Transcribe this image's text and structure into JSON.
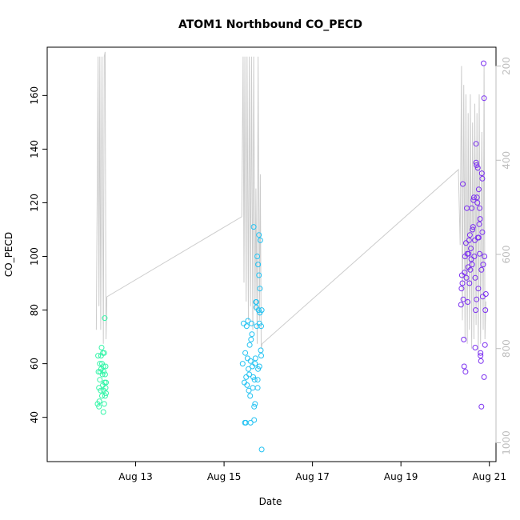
{
  "chart_data": {
    "type": "scatter",
    "title": "ATOM1 Northbound CO_PECD",
    "xlabel": "Date",
    "ylabel": "CO_PECD",
    "x_unit": "days (0 = Aug 12 00:00)",
    "xlim": [
      -1.0,
      9.15
    ],
    "ylim": [
      23.5,
      178
    ],
    "x_ticks": [
      {
        "v": 1,
        "label": "Aug 13"
      },
      {
        "v": 3,
        "label": "Aug 15"
      },
      {
        "v": 5,
        "label": "Aug 17"
      },
      {
        "v": 7,
        "label": "Aug 19"
      },
      {
        "v": 9,
        "label": "Aug 21"
      }
    ],
    "y_ticks": [
      40,
      60,
      80,
      100,
      120,
      140,
      160
    ],
    "right_axis": {
      "reversed": true,
      "lim": [
        160,
        1040
      ],
      "ticks": [
        200,
        400,
        600,
        800,
        1000
      ],
      "color": "#bdbdbd"
    },
    "colors": {
      "group1": "#34f5a8",
      "group2": "#22c2f2",
      "group3": "#7b2ff0",
      "line": "#cccccc",
      "frame": "#000000"
    },
    "series": [
      {
        "name": "group1",
        "color": "#34f5a8",
        "points": [
          [
            0.14,
            45
          ],
          [
            0.15,
            63
          ],
          [
            0.16,
            57
          ],
          [
            0.17,
            51
          ],
          [
            0.17,
            44
          ],
          [
            0.18,
            46
          ],
          [
            0.19,
            60
          ],
          [
            0.19,
            54
          ],
          [
            0.2,
            57
          ],
          [
            0.21,
            50
          ],
          [
            0.22,
            63
          ],
          [
            0.22,
            58
          ],
          [
            0.23,
            66
          ],
          [
            0.24,
            60
          ],
          [
            0.24,
            48
          ],
          [
            0.25,
            56
          ],
          [
            0.26,
            64
          ],
          [
            0.26,
            52
          ],
          [
            0.27,
            42
          ],
          [
            0.27,
            59
          ],
          [
            0.28,
            57
          ],
          [
            0.28,
            50
          ],
          [
            0.29,
            64
          ],
          [
            0.29,
            45
          ],
          [
            0.3,
            77
          ],
          [
            0.3,
            53
          ],
          [
            0.31,
            48
          ],
          [
            0.31,
            56
          ],
          [
            0.32,
            51
          ],
          [
            0.32,
            59
          ],
          [
            0.33,
            49
          ],
          [
            0.33,
            53
          ]
        ]
      },
      {
        "name": "group2",
        "color": "#22c2f2",
        "points": [
          [
            3.42,
            60
          ],
          [
            3.44,
            75
          ],
          [
            3.46,
            53
          ],
          [
            3.47,
            38
          ],
          [
            3.48,
            64
          ],
          [
            3.49,
            38
          ],
          [
            3.5,
            55
          ],
          [
            3.51,
            74
          ],
          [
            3.52,
            52
          ],
          [
            3.53,
            62
          ],
          [
            3.54,
            76
          ],
          [
            3.55,
            58
          ],
          [
            3.56,
            50
          ],
          [
            3.57,
            56
          ],
          [
            3.58,
            67
          ],
          [
            3.59,
            48
          ],
          [
            3.6,
            38
          ],
          [
            3.6,
            61
          ],
          [
            3.61,
            69
          ],
          [
            3.62,
            75
          ],
          [
            3.63,
            71
          ],
          [
            3.64,
            59
          ],
          [
            3.65,
            51
          ],
          [
            3.66,
            55
          ],
          [
            3.67,
            111
          ],
          [
            3.68,
            39
          ],
          [
            3.68,
            44
          ],
          [
            3.69,
            54
          ],
          [
            3.7,
            60
          ],
          [
            3.7,
            45
          ],
          [
            3.71,
            62
          ],
          [
            3.72,
            83
          ],
          [
            3.73,
            83
          ],
          [
            3.73,
            81
          ],
          [
            3.74,
            74
          ],
          [
            3.75,
            100
          ],
          [
            3.76,
            54
          ],
          [
            3.76,
            51
          ],
          [
            3.77,
            58
          ],
          [
            3.77,
            97
          ],
          [
            3.78,
            80
          ],
          [
            3.79,
            108
          ],
          [
            3.79,
            93
          ],
          [
            3.8,
            75
          ],
          [
            3.8,
            59
          ],
          [
            3.81,
            88
          ],
          [
            3.81,
            79
          ],
          [
            3.82,
            106
          ],
          [
            3.83,
            65
          ],
          [
            3.84,
            63
          ],
          [
            3.84,
            74
          ],
          [
            3.85,
            80
          ],
          [
            3.85,
            28
          ]
        ]
      },
      {
        "name": "group3",
        "color": "#7b2ff0",
        "points": [
          [
            8.36,
            82
          ],
          [
            8.37,
            88
          ],
          [
            8.38,
            93
          ],
          [
            8.39,
            90
          ],
          [
            8.4,
            127
          ],
          [
            8.41,
            84
          ],
          [
            8.42,
            69
          ],
          [
            8.43,
            59
          ],
          [
            8.44,
            94
          ],
          [
            8.45,
            100
          ],
          [
            8.46,
            57
          ],
          [
            8.47,
            105
          ],
          [
            8.48,
            92
          ],
          [
            8.49,
            118
          ],
          [
            8.5,
            101
          ],
          [
            8.51,
            83
          ],
          [
            8.52,
            96
          ],
          [
            8.53,
            101
          ],
          [
            8.54,
            106
          ],
          [
            8.55,
            90
          ],
          [
            8.56,
            108
          ],
          [
            8.57,
            95
          ],
          [
            8.58,
            103
          ],
          [
            8.59,
            99
          ],
          [
            8.6,
            118
          ],
          [
            8.61,
            97
          ],
          [
            8.62,
            110
          ],
          [
            8.63,
            111
          ],
          [
            8.64,
            121
          ],
          [
            8.65,
            122
          ],
          [
            8.66,
            100
          ],
          [
            8.67,
            106
          ],
          [
            8.68,
            92
          ],
          [
            8.68,
            66
          ],
          [
            8.69,
            80
          ],
          [
            8.7,
            142
          ],
          [
            8.7,
            135
          ],
          [
            8.71,
            134
          ],
          [
            8.71,
            84
          ],
          [
            8.72,
            122
          ],
          [
            8.73,
            120
          ],
          [
            8.74,
            133
          ],
          [
            8.74,
            107
          ],
          [
            8.75,
            88
          ],
          [
            8.76,
            107
          ],
          [
            8.76,
            125
          ],
          [
            8.77,
            112
          ],
          [
            8.78,
            101
          ],
          [
            8.78,
            118
          ],
          [
            8.79,
            114
          ],
          [
            8.8,
            63
          ],
          [
            8.8,
            64
          ],
          [
            8.81,
            61
          ],
          [
            8.82,
            95
          ],
          [
            8.82,
            44
          ],
          [
            8.83,
            131
          ],
          [
            8.84,
            109
          ],
          [
            8.84,
            129
          ],
          [
            8.85,
            85
          ],
          [
            8.86,
            97
          ],
          [
            8.87,
            172
          ],
          [
            8.88,
            159
          ],
          [
            8.88,
            55
          ],
          [
            8.89,
            100
          ],
          [
            8.9,
            67
          ],
          [
            8.91,
            80
          ],
          [
            8.92,
            86
          ]
        ]
      }
    ],
    "line_series": {
      "name": "secondary (right axis)",
      "color": "#cccccc",
      "points": [
        [
          0.11,
          760
        ],
        [
          0.15,
          180
        ],
        [
          0.17,
          710
        ],
        [
          0.19,
          180
        ],
        [
          0.21,
          760
        ],
        [
          0.24,
          180
        ],
        [
          0.27,
          790
        ],
        [
          0.29,
          180
        ],
        [
          0.31,
          170
        ],
        [
          0.33,
          780
        ],
        [
          0.35,
          690
        ],
        [
          3.4,
          520
        ],
        [
          3.43,
          180
        ],
        [
          3.45,
          660
        ],
        [
          3.47,
          180
        ],
        [
          3.5,
          700
        ],
        [
          3.52,
          180
        ],
        [
          3.55,
          740
        ],
        [
          3.57,
          180
        ],
        [
          3.6,
          710
        ],
        [
          3.62,
          180
        ],
        [
          3.65,
          760
        ],
        [
          3.67,
          180
        ],
        [
          3.7,
          720
        ],
        [
          3.72,
          460
        ],
        [
          3.75,
          790
        ],
        [
          3.77,
          180
        ],
        [
          3.8,
          740
        ],
        [
          3.82,
          430
        ],
        [
          3.84,
          800
        ],
        [
          3.86,
          790
        ],
        [
          8.3,
          420
        ],
        [
          8.34,
          580
        ],
        [
          8.37,
          200
        ],
        [
          8.39,
          740
        ],
        [
          8.42,
          240
        ],
        [
          8.45,
          780
        ],
        [
          8.47,
          260
        ],
        [
          8.5,
          790
        ],
        [
          8.52,
          300
        ],
        [
          8.55,
          760
        ],
        [
          8.57,
          260
        ],
        [
          8.6,
          800
        ],
        [
          8.62,
          320
        ],
        [
          8.65,
          780
        ],
        [
          8.67,
          280
        ],
        [
          8.7,
          750
        ],
        [
          8.72,
          300
        ],
        [
          8.75,
          810
        ],
        [
          8.77,
          260
        ],
        [
          8.8,
          790
        ],
        [
          8.83,
          340
        ],
        [
          8.86,
          760
        ],
        [
          8.88,
          200
        ],
        [
          8.9,
          780
        ],
        [
          8.92,
          700
        ]
      ]
    }
  }
}
